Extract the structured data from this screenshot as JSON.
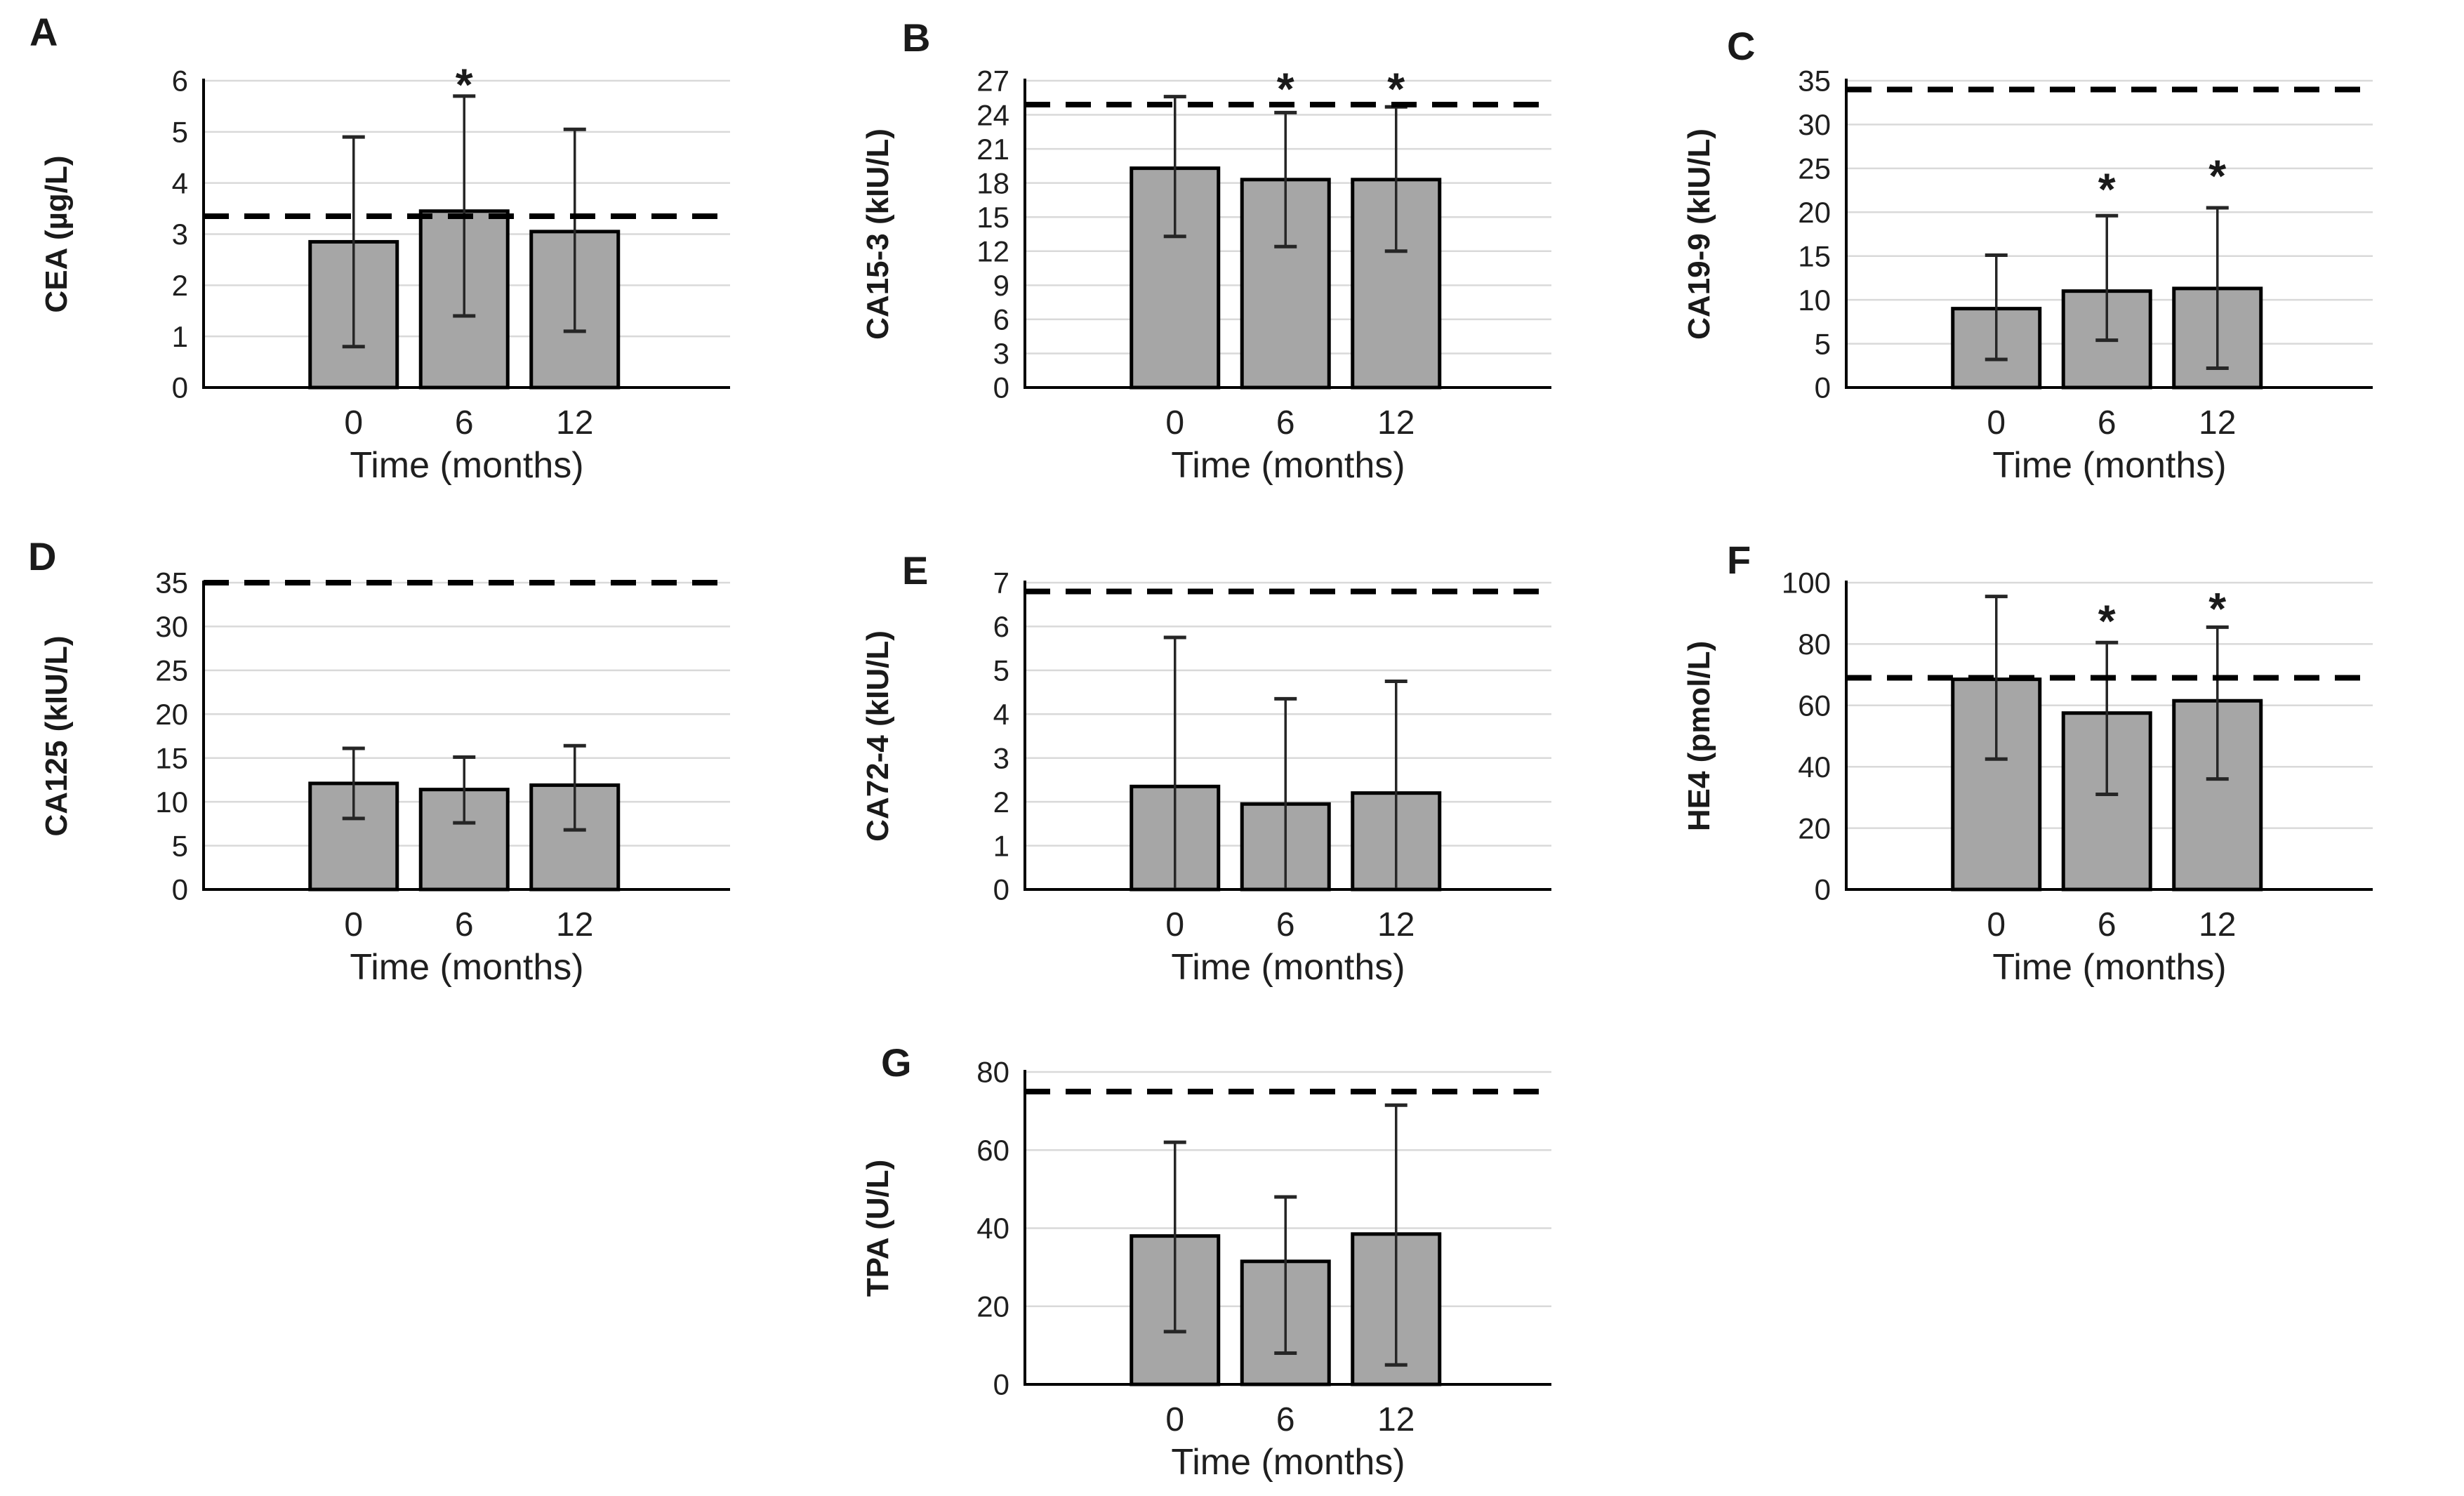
{
  "figure": {
    "background": "#ffffff",
    "bar_fill": "#a6a6a6",
    "bar_stroke": "#000000",
    "grid_color": "#d9d9d9",
    "axis_color": "#000000",
    "error_color": "#262626",
    "cutoff_color": "#000000",
    "significance_marker": "*",
    "xlabel": "Time (months)",
    "categories": [
      "0",
      "6",
      "12"
    ],
    "legend": "none",
    "grid": "horizontal-major"
  },
  "chart_data": [
    {
      "type": "bar",
      "label": "A",
      "ylabel": "CEA (µg/L)",
      "ylim": [
        0,
        6
      ],
      "ystep": 1,
      "cutoff": 3.35,
      "categories": [
        "0",
        "6",
        "12"
      ],
      "values": [
        2.85,
        3.45,
        3.05
      ],
      "err_low": [
        0.8,
        1.4,
        1.1
      ],
      "err_high": [
        4.9,
        5.7,
        5.05
      ],
      "sig": [
        false,
        true,
        false
      ],
      "sig_y": [
        null,
        5.95,
        null
      ],
      "row": 1,
      "col": 1
    },
    {
      "type": "bar",
      "label": "B",
      "ylabel": "CA15-3 (kIU/L)",
      "ylim": [
        0,
        27
      ],
      "ystep": 3,
      "cutoff": 24.9,
      "categories": [
        "0",
        "6",
        "12"
      ],
      "values": [
        19.3,
        18.3,
        18.3
      ],
      "err_low": [
        13.3,
        12.4,
        12.0
      ],
      "err_high": [
        25.6,
        24.2,
        24.7
      ],
      "sig": [
        false,
        true,
        true
      ],
      "sig_y": [
        null,
        26.4,
        26.4
      ],
      "row": 1,
      "col": 2
    },
    {
      "type": "bar",
      "label": "C",
      "ylabel": "CA19-9 (kIU/L)",
      "ylim": [
        0,
        35
      ],
      "ystep": 5,
      "cutoff": 34,
      "categories": [
        "0",
        "6",
        "12"
      ],
      "values": [
        9.0,
        11.0,
        11.3
      ],
      "err_low": [
        3.2,
        5.4,
        2.2
      ],
      "err_high": [
        15.1,
        19.6,
        20.5
      ],
      "sig": [
        false,
        true,
        true
      ],
      "sig_y": [
        null,
        22.8,
        24.3
      ],
      "row": 1,
      "col": 3
    },
    {
      "type": "bar",
      "label": "D",
      "ylabel": "CA125 (kIU/L)",
      "ylim": [
        0,
        35
      ],
      "ystep": 5,
      "cutoff": 35,
      "categories": [
        "0",
        "6",
        "12"
      ],
      "values": [
        12.1,
        11.4,
        11.9
      ],
      "err_low": [
        8.1,
        7.6,
        6.8
      ],
      "err_high": [
        16.1,
        15.1,
        16.4
      ],
      "sig": [
        false,
        false,
        false
      ],
      "sig_y": [
        null,
        null,
        null
      ],
      "row": 2,
      "col": 1
    },
    {
      "type": "bar",
      "label": "E",
      "ylabel": "CA72-4 (kIU/L)",
      "ylim": [
        0,
        7
      ],
      "ystep": 1,
      "cutoff": 6.8,
      "categories": [
        "0",
        "6",
        "12"
      ],
      "values": [
        2.35,
        1.95,
        2.2
      ],
      "err_low": [
        0,
        0,
        0
      ],
      "err_high": [
        5.75,
        4.35,
        4.75
      ],
      "sig": [
        false,
        false,
        false
      ],
      "sig_y": [
        null,
        null,
        null
      ],
      "row": 2,
      "col": 2
    },
    {
      "type": "bar",
      "label": "F",
      "ylabel": "HE4 (pmol/L)",
      "ylim": [
        0,
        100
      ],
      "ystep": 20,
      "cutoff": 69,
      "categories": [
        "0",
        "6",
        "12"
      ],
      "values": [
        68.5,
        57.5,
        61.5
      ],
      "err_low": [
        42.5,
        31,
        36
      ],
      "err_high": [
        95.5,
        80.5,
        85.5
      ],
      "sig": [
        false,
        true,
        true
      ],
      "sig_y": [
        null,
        88,
        92
      ],
      "row": 2,
      "col": 3
    },
    {
      "type": "bar",
      "label": "G",
      "ylabel": "TPA (U/L)",
      "ylim": [
        0,
        80
      ],
      "ystep": 20,
      "cutoff": 75,
      "categories": [
        "0",
        "6",
        "12"
      ],
      "values": [
        38,
        31.5,
        38.5
      ],
      "err_low": [
        13.5,
        8,
        5
      ],
      "err_high": [
        62,
        48,
        71.5
      ],
      "sig": [
        false,
        false,
        false
      ],
      "sig_y": [
        null,
        null,
        null
      ],
      "row": 3,
      "col": 2
    }
  ]
}
